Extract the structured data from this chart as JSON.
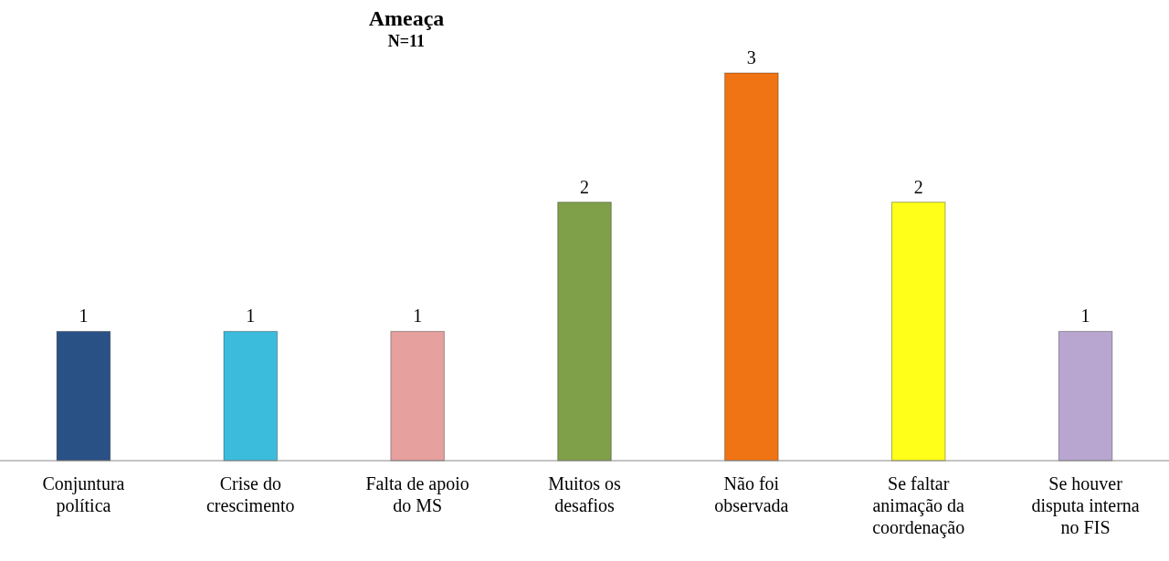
{
  "chart_data": {
    "type": "bar",
    "title": "Ameaça",
    "subtitle": "N=11",
    "categories": [
      "Conjuntura política",
      "Crise do crescimento",
      "Falta de apoio do MS",
      "Muitos os desafios",
      "Não foi observada",
      "Se faltar animação da coordenação",
      "Se houver disputa interna no FIS"
    ],
    "values": [
      1,
      1,
      1,
      2,
      3,
      2,
      1
    ],
    "colors": [
      "#2a5185",
      "#3bbcdc",
      "#e6a09e",
      "#7f9f48",
      "#f07414",
      "#ffff1a",
      "#b8a6d0"
    ],
    "data_labels": true
  }
}
